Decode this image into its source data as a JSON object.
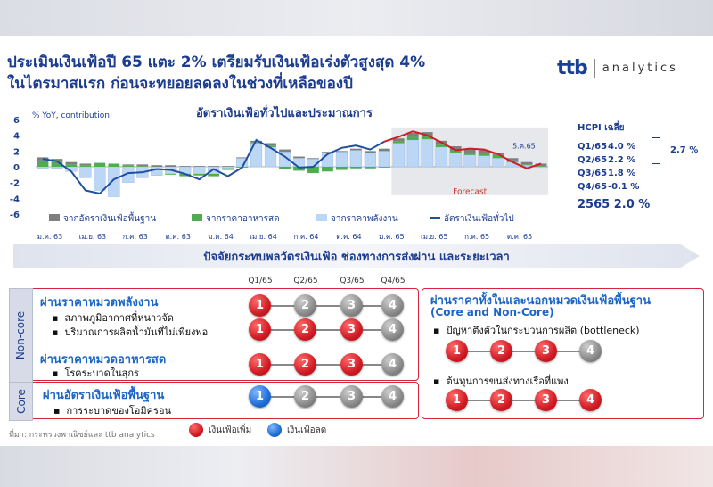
{
  "title_lines": [
    "ประเมินเงินเฟ้อปี 65 แตะ 2% เตรียมรับเงินเฟ้อเร่งตัวสูงสุด 4%",
    "ในไตรมาสแรก ก่อนจะทยอยลดลงในช่วงที่เหลือของปี"
  ],
  "logo": {
    "mark": "ttb",
    "text": "analytics"
  },
  "chart_data": {
    "type": "bar+line",
    "title": "อัตราเงินเฟ้อทั่วไปและประมาณการ",
    "ylabel": "% YoY, contribution",
    "ylim": [
      -6,
      6
    ],
    "yticks": [
      6,
      4,
      2,
      0,
      -2,
      -4,
      -6
    ],
    "xtick_labels": [
      "ม.ค. 63",
      "เม.ย. 63",
      "ก.ค. 63",
      "ต.ค. 63",
      "ม.ค. 64",
      "เม.ย. 64",
      "ก.ค. 64",
      "ต.ค. 64",
      "ม.ค. 65",
      "เม.ย. 65",
      "ก.ค. 65",
      "ต.ค. 65"
    ],
    "months": 36,
    "forecast_start_index": 25,
    "forecast_label": "Forecast",
    "annotation": "5.ค.65",
    "series": [
      {
        "name": "จากอัตราเงินเฟ้อพื้นฐาน",
        "color": "#7f7f7f",
        "values": [
          0.4,
          0.4,
          0.3,
          0.2,
          0.0,
          0.0,
          0.1,
          0.2,
          0.2,
          0.2,
          0.1,
          0.1,
          0.1,
          0.1,
          0.1,
          0.2,
          0.3,
          0.3,
          0.2,
          0.1,
          0.1,
          0.1,
          0.2,
          0.2,
          0.3,
          0.4,
          0.5,
          0.5,
          0.5,
          0.5,
          0.4,
          0.4,
          0.3,
          0.3,
          0.3,
          0.3
        ]
      },
      {
        "name": "จากราคาอาหารสด",
        "color": "#4cae4c",
        "values": [
          0.8,
          0.6,
          0.3,
          0.2,
          0.5,
          0.4,
          0.2,
          0.1,
          0.0,
          -0.1,
          -0.3,
          -0.2,
          -0.3,
          -0.2,
          -0.1,
          0.1,
          0.2,
          -0.3,
          -0.5,
          -0.8,
          -0.6,
          -0.4,
          -0.2,
          -0.2,
          -0.1,
          0.2,
          0.4,
          0.4,
          0.3,
          0.3,
          0.3,
          0.3,
          0.4,
          0.2,
          0.1,
          0.1
        ]
      },
      {
        "name": "จากราคาพลังงาน",
        "color": "#bcd6f5",
        "values": [
          -0.2,
          -0.2,
          -0.6,
          -1.4,
          -3.0,
          -3.8,
          -2.0,
          -1.4,
          -1.1,
          -0.9,
          -0.9,
          -0.9,
          -0.9,
          -0.2,
          1.1,
          3.0,
          2.5,
          1.9,
          1.1,
          1.0,
          1.8,
          1.9,
          2.1,
          1.8,
          2.0,
          3.0,
          3.4,
          3.5,
          2.5,
          1.8,
          1.5,
          1.4,
          1.1,
          0.6,
          0.2,
          -0.1
        ]
      },
      {
        "name": "อัตราเงินเฟ้อทั่วไป",
        "color": "#1f4fa0",
        "kind": "line",
        "values": [
          1.0,
          0.7,
          -0.6,
          -3.0,
          -3.4,
          -1.6,
          -0.8,
          -0.7,
          -0.3,
          -0.4,
          -0.9,
          -1.6,
          -0.3,
          -1.2,
          -0.1,
          3.4,
          2.4,
          1.3,
          -0.1,
          0.0,
          1.6,
          2.4,
          2.7,
          2.2,
          3.2,
          3.8,
          4.5,
          4.0,
          3.1,
          2.1,
          2.3,
          2.2,
          1.6,
          0.6,
          -0.2,
          0.4
        ]
      }
    ]
  },
  "hcpi": {
    "title": "HCPI เฉลี่ย",
    "rows": [
      {
        "q": "Q1/65",
        "v": "4.0 %"
      },
      {
        "q": "Q2/65",
        "v": "2.2 %"
      },
      {
        "q": "Q3/65",
        "v": "1.8 %"
      },
      {
        "q": "Q4/65",
        "v": "-0.1 %"
      }
    ],
    "h1": "2.7 %",
    "year": "2565 2.0 %"
  },
  "banner": "ปัจจัยกระทบพลวัตรเงินเฟ้อ ช่องทางการส่งผ่าน และระยะเวลา",
  "quarters": [
    "Q1/65",
    "Q2/65",
    "Q3/65",
    "Q4/65"
  ],
  "noncore_label": "Non-core",
  "core_label": "Core",
  "groups": {
    "energy": {
      "title": "ผ่านราคาหมวดพลังงาน",
      "items": [
        {
          "text": "สภาพภูมิอากาศที่หนาวจัด",
          "states": [
            "red",
            "grey",
            "grey",
            "grey"
          ]
        },
        {
          "text": "ปริมาณการผลิตน้ำมันที่ไม่เพียงพอ",
          "states": [
            "red",
            "red",
            "red",
            "grey"
          ]
        }
      ]
    },
    "food": {
      "title": "ผ่านราคาหมวดอาหารสด",
      "items": [
        {
          "text": "โรคระบาดในสุกร",
          "states": [
            "red",
            "red",
            "red",
            "grey"
          ]
        }
      ]
    },
    "core": {
      "title": "ผ่านอัตราเงินเฟ้อพื้นฐาน",
      "items": [
        {
          "text": "การระบาดของโอมิครอน",
          "states": [
            "blue",
            "grey",
            "grey",
            "grey"
          ]
        }
      ]
    },
    "right": {
      "title": "ผ่านราคาทั้งในและนอกหมวดเงินเฟ้อพื้นฐาน",
      "subtitle": "(Core and Non-Core)",
      "items": [
        {
          "text": "ปัญหาตึงตัวในกระบวนการผลิต (bottleneck)",
          "states": [
            "red",
            "red",
            "red",
            "grey"
          ]
        },
        {
          "text": "ต้นทุนการขนส่งทางเรือที่แพง",
          "states": [
            "red",
            "red",
            "red",
            "red"
          ]
        }
      ]
    }
  },
  "circle_numbers": [
    "1",
    "2",
    "3",
    "4"
  ],
  "source": "ที่มา: กระทรวงพาณิชย์และ ttb analytics",
  "legend_up": "เงินเฟ้อเพิ่ม",
  "legend_down": "เงินเฟ้อลด",
  "colors": {
    "red": "#d11b24",
    "blue": "#1f6fd6",
    "grey": "#8a8a8a",
    "accent": "#1c3d8f"
  }
}
